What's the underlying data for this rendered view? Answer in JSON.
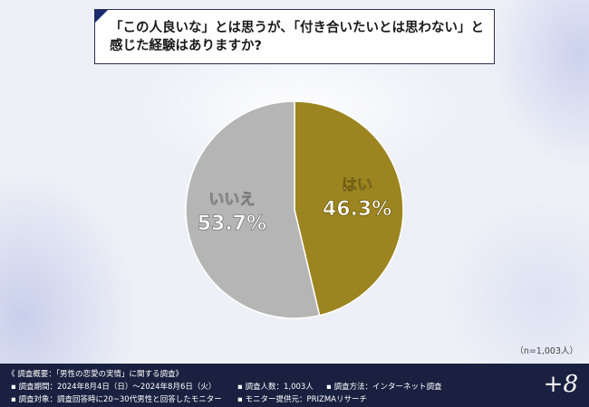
{
  "title_line1": "「この人良いな」とは思うが、「付き合いたいとは思わない」と",
  "title_line2": "感じた経験はありますか?",
  "chart_data": {
    "type": "pie",
    "title": "「この人良いな」とは思うが、「付き合いたいとは思わない」と感じた経験はありますか?",
    "slices": [
      {
        "label": "はい",
        "value": 46.3,
        "value_label": "46.3%",
        "color": "#9c8520"
      },
      {
        "label": "いいえ",
        "value": 53.7,
        "value_label": "53.7%",
        "color": "#b5b5b5"
      }
    ],
    "start": "12 o'clock",
    "direction": "clockwise",
    "legend": "none",
    "sample_size": "（n=1,003人）"
  },
  "footer": {
    "survey_title": "《 調査概要：「男性の恋愛の実情」に関する調査》",
    "period": "▪ 調査期間：2024年8月4日（日）～2024年8月6日（火）",
    "respondents": "▪ 調査人数：1,003人",
    "method": "▪ 調査方法：インターネット調査",
    "target": "▪ 調査対象：調査回答時に20~30代男性と回答したモニター",
    "provider": "▪ モニター提供元：PRIZMAリサーチ",
    "brand": "+8"
  }
}
